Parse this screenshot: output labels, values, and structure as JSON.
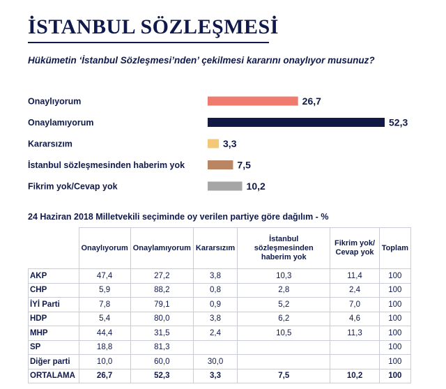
{
  "title": "İSTANBUL SÖZLEŞMESİ",
  "question": "Hükümetin ‘İstanbul Sözleşmesi’nden’ çekilmesi kararını onaylıyor musunuz?",
  "subtitle": "24 Haziran 2018 Milletvekili seçiminde oy verilen partiye göre dağılım - %",
  "colors": {
    "title": "#101a4a",
    "text": "#101a4a",
    "bars": [
      "#ee7b6e",
      "#111a45",
      "#f5c878",
      "#b98562",
      "#a6a6a6"
    ]
  },
  "chart_data": [
    {
      "type": "bar",
      "orientation": "horizontal",
      "title": "Hükümetin ‘İstanbul Sözleşmesi’nden’ çekilmesi kararını onaylıyor musunuz?",
      "categories": [
        "Onaylıyorum",
        "Onaylamıyorum",
        "Kararsızım",
        "İstanbul sözleşmesinden haberim yok",
        "Fikrim yok/Cevap yok"
      ],
      "values": [
        26.7,
        52.3,
        3.3,
        7.5,
        10.2
      ],
      "value_labels": [
        "26,7",
        "52,3",
        "3,3",
        "7,5",
        "10,2"
      ],
      "xlim": [
        0,
        52.3
      ],
      "grid": false
    },
    {
      "type": "table",
      "title": "24 Haziran 2018 Milletvekili seçiminde oy verilen partiye göre dağılım - %",
      "columns": [
        "",
        "Onaylıyorum",
        "Onaylamıyorum",
        "Kararsızım",
        "İstanbul sözleşmesinden haberim yok",
        "Fikrim yok/ Cevap yok",
        "Toplam"
      ],
      "rows": [
        [
          "AKP",
          "47,4",
          "27,2",
          "3,8",
          "10,3",
          "11,4",
          "100"
        ],
        [
          "CHP",
          "5,9",
          "88,2",
          "0,8",
          "2,8",
          "2,4",
          "100"
        ],
        [
          "İYİ Parti",
          "7,8",
          "79,1",
          "0,9",
          "5,2",
          "7,0",
          "100"
        ],
        [
          "HDP",
          "5,4",
          "80,0",
          "3,8",
          "6,2",
          "4,6",
          "100"
        ],
        [
          "MHP",
          "44,4",
          "31,5",
          "2,4",
          "10,5",
          "11,3",
          "100"
        ],
        [
          "SP",
          "18,8",
          "81,3",
          "",
          "",
          "",
          "100"
        ],
        [
          "Diğer parti",
          "10,0",
          "60,0",
          "30,0",
          "",
          "",
          "100"
        ],
        [
          "ORTALAMA",
          "26,7",
          "52,3",
          "3,3",
          "7,5",
          "10,2",
          "100"
        ]
      ]
    }
  ]
}
